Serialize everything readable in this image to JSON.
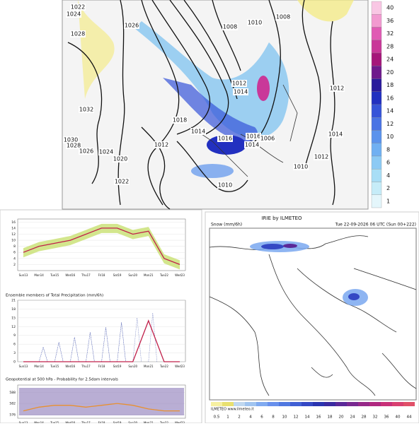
{
  "top_map": {
    "isobar_labels": [
      "1022",
      "1024",
      "1028",
      "1026",
      "1032",
      "1030",
      "1028",
      "1026",
      "1024",
      "1020",
      "1022",
      "1008",
      "1010",
      "1012",
      "1014",
      "1016",
      "1018",
      "1014",
      "1016",
      "1014",
      "1012",
      "1010",
      "1008",
      "1006",
      "1012",
      "1010",
      "1014",
      "1012"
    ],
    "colorbar": {
      "labels": [
        40,
        36,
        32,
        28,
        24,
        20,
        18,
        16,
        14,
        12,
        10,
        8,
        6,
        4,
        2,
        1
      ],
      "colors": [
        "#f9c7e4",
        "#f29ad0",
        "#e05bb4",
        "#c93899",
        "#a5177a",
        "#6e1a8c",
        "#2a1a9c",
        "#2230c0",
        "#3654d8",
        "#4a74e4",
        "#5b93ec",
        "#70b0f2",
        "#8ccaf4",
        "#a8def6",
        "#c6ecf8",
        "#e4f6fb"
      ]
    }
  },
  "meteogram": {
    "x_labels": [
      "Sun13",
      "Mon14",
      "Tue15",
      "Wed16",
      "Thu17",
      "Fri18",
      "Sat19",
      "Sun20",
      "Mon21",
      "Tue22",
      "Wed23"
    ],
    "panels": [
      {
        "title": null,
        "ylim": [
          0,
          17
        ],
        "yticks": [
          16,
          14,
          12,
          10,
          8,
          6,
          4,
          2
        ],
        "color": "#c0204a",
        "values": [
          6,
          8,
          9,
          10,
          12,
          14,
          14,
          12,
          13,
          4,
          2
        ]
      },
      {
        "title": "Ensemble members of Total Precipitation (mm/6h)",
        "ylim": [
          0,
          21
        ],
        "yticks": [
          21,
          18,
          15,
          12,
          9,
          6,
          3,
          0
        ],
        "color": "#c0204a",
        "values": [
          0,
          0,
          0,
          0,
          0,
          0,
          0,
          0,
          14,
          0,
          0
        ]
      },
      {
        "title": "Geopotential at 500 hPa - Probability for 2.5dam intervals",
        "ylim": [
          574,
          592
        ],
        "yticks": [
          588,
          582,
          576
        ],
        "color": "#e89030",
        "values": [
          578,
          580,
          581,
          581,
          580,
          581,
          582,
          581,
          579,
          578,
          578
        ]
      }
    ]
  },
  "snow_map": {
    "brand": "IRIE by ILMETEO",
    "variable": "Snow (mm/6h)",
    "valid_time": "Tue 22-09-2026 06 UTC (Sun 00+222)",
    "footer": "ILMETEO www.ilmeteo.it",
    "colorbar": {
      "labels": [
        0.5,
        1,
        2,
        4,
        6,
        8,
        10,
        12,
        14,
        16,
        18,
        20,
        24,
        28,
        32,
        36,
        40,
        44
      ],
      "colors": [
        "#f6f0a0",
        "#e8e070",
        "#c0d8f0",
        "#a0c4f0",
        "#80aaf0",
        "#6890ec",
        "#5078e0",
        "#4060d4",
        "#3448c4",
        "#2a34b0",
        "#3a2aa0",
        "#5a2898",
        "#782890",
        "#962888",
        "#b02880",
        "#c83078",
        "#d84070",
        "#e05068"
      ]
    }
  }
}
